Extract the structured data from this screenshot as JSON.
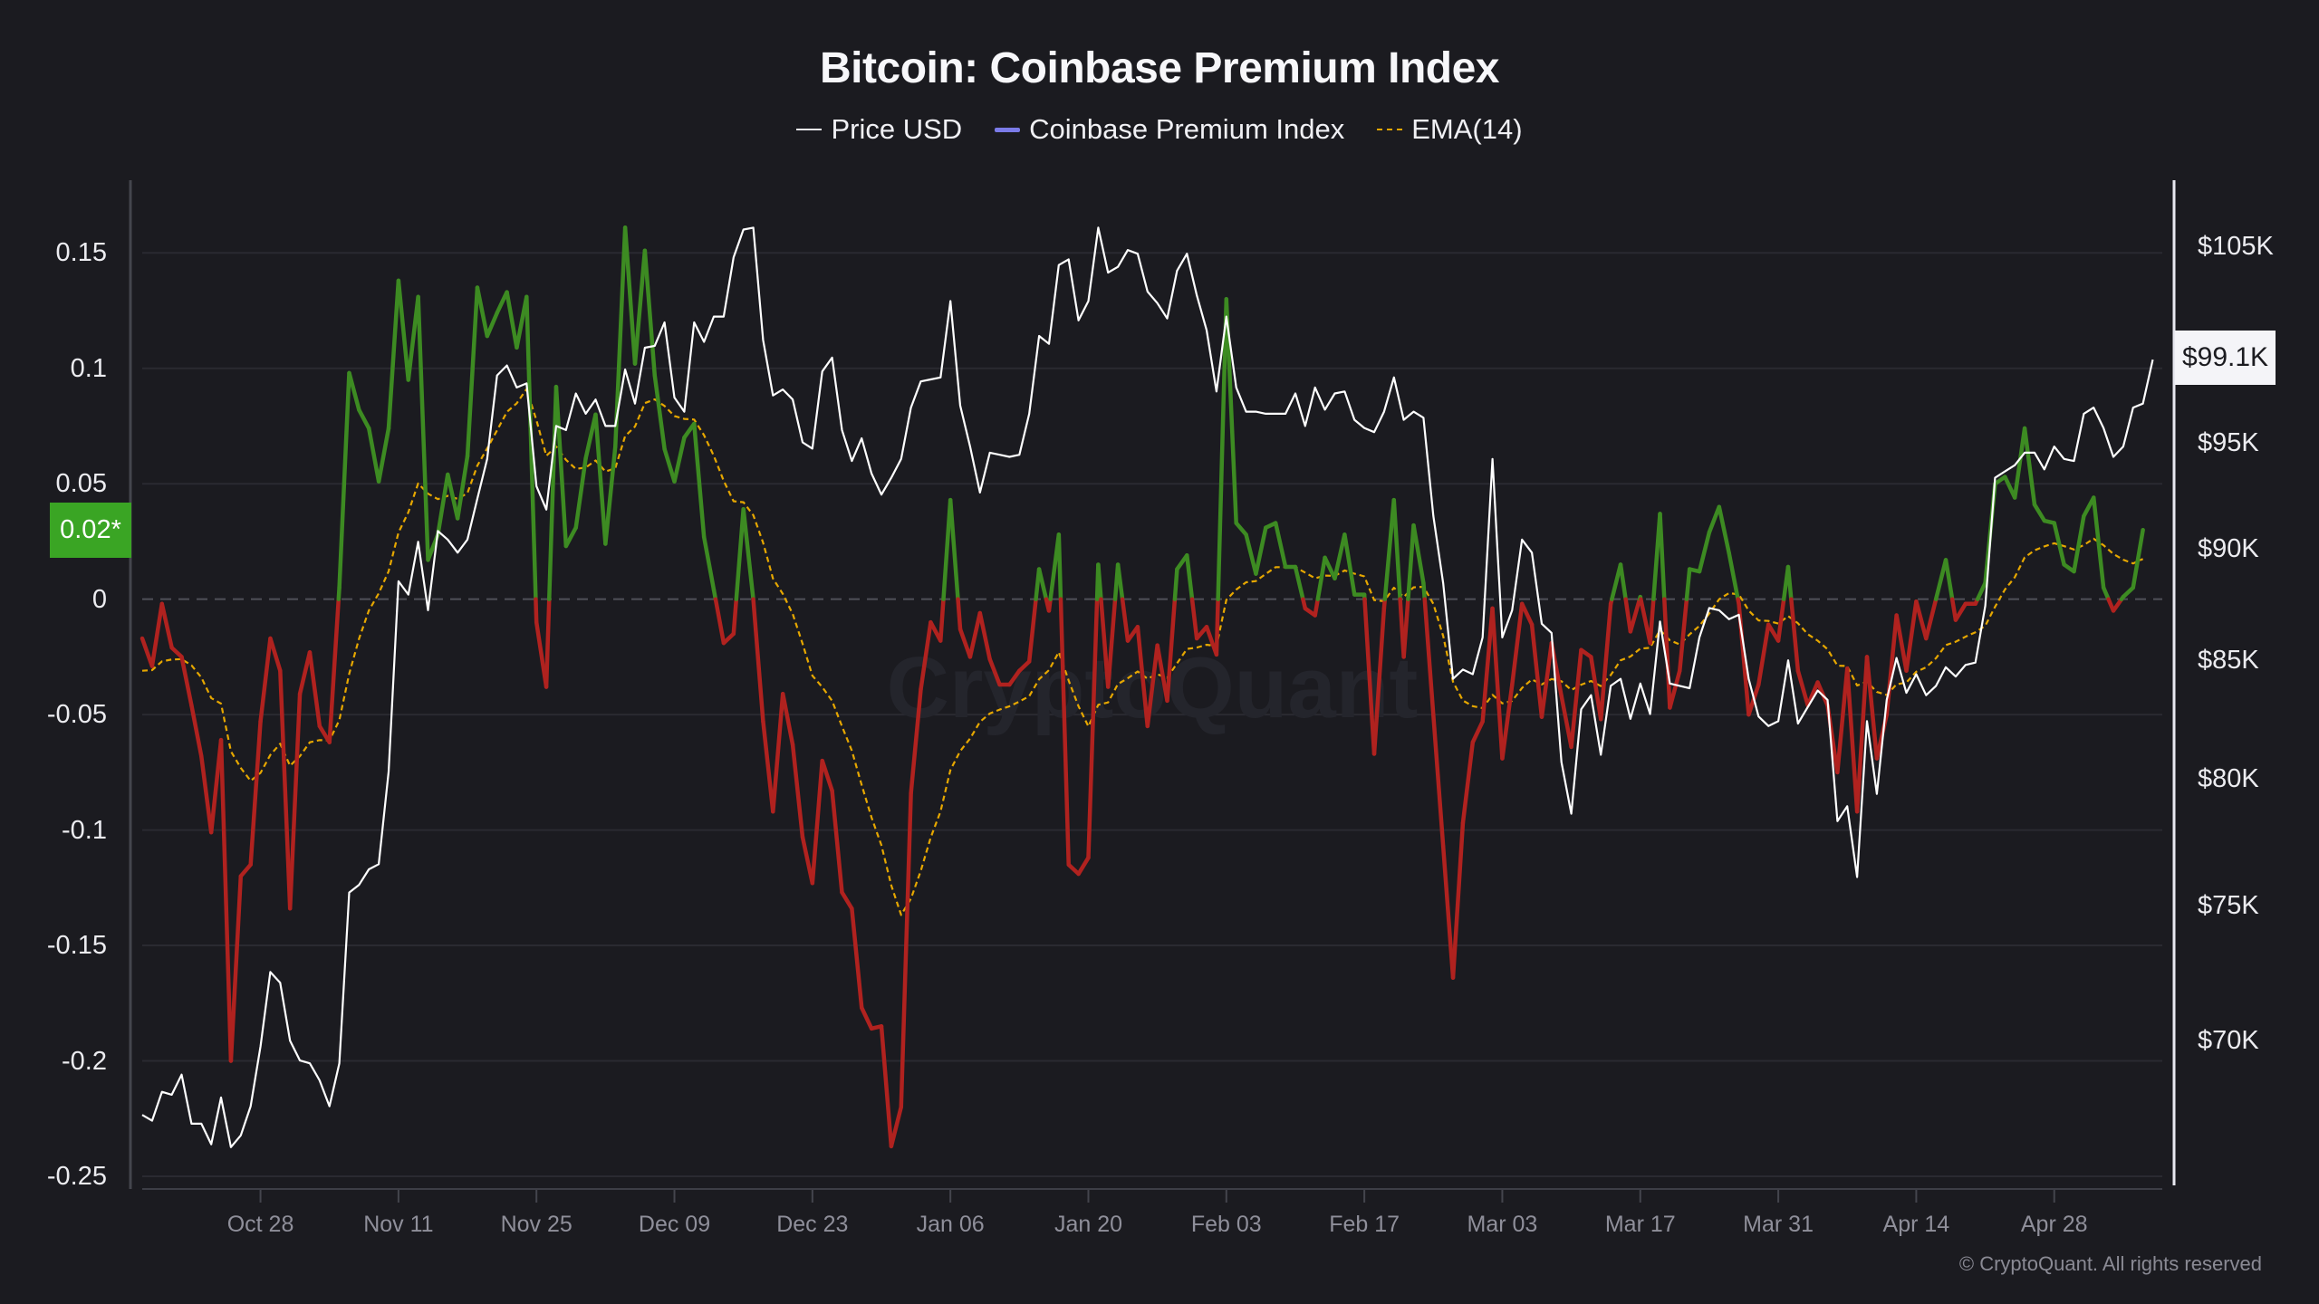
{
  "chart_data": {
    "type": "line",
    "title": "Bitcoin: Coinbase Premium Index",
    "legend": [
      {
        "name": "Price USD",
        "color": "#e8e8ee",
        "style": "solid"
      },
      {
        "name": "Coinbase Premium Index",
        "color": "#7b7be8",
        "style": "solid"
      },
      {
        "name": "EMA(14)",
        "color": "#e6a700",
        "style": "dashed"
      }
    ],
    "legend_position": "top-center",
    "colors": {
      "positive": "#3d8b22",
      "negative": "#b0221f",
      "price": "#ffffff",
      "ema": "#e6a700",
      "cpi_marker": "#3aa524",
      "background": "#1b1b20"
    },
    "x_ticks": [
      {
        "label": "Oct 28",
        "day": 12
      },
      {
        "label": "Nov 11",
        "day": 26
      },
      {
        "label": "Nov 25",
        "day": 40
      },
      {
        "label": "Dec 09",
        "day": 54
      },
      {
        "label": "Dec 23",
        "day": 68
      },
      {
        "label": "Jan 06",
        "day": 82
      },
      {
        "label": "Jan 20",
        "day": 96
      },
      {
        "label": "Feb 03",
        "day": 110
      },
      {
        "label": "Feb 17",
        "day": 124
      },
      {
        "label": "Mar 03",
        "day": 138
      },
      {
        "label": "Mar 17",
        "day": 152
      },
      {
        "label": "Mar 31",
        "day": 166
      },
      {
        "label": "Apr 14",
        "day": 180
      },
      {
        "label": "Apr 28",
        "day": 194
      }
    ],
    "left_axis": {
      "ylim": [
        -0.2555,
        0.1815
      ],
      "ticks": [
        {
          "label": "0.15",
          "value": 0.15
        },
        {
          "label": "0.1",
          "value": 0.1
        },
        {
          "label": "0.05",
          "value": 0.05
        },
        {
          "label": "0",
          "value": 0
        },
        {
          "label": "-0.05",
          "value": -0.05
        },
        {
          "label": "-0.1",
          "value": -0.1
        },
        {
          "label": "-0.15",
          "value": -0.15
        },
        {
          "label": "-0.2",
          "value": -0.2
        },
        {
          "label": "-0.25",
          "value": -0.25
        }
      ]
    },
    "right_axis": {
      "scale": "log",
      "units": "thousand USD",
      "ylim": [
        64.9,
        108.6
      ],
      "ticks": [
        {
          "label": "$105K",
          "value": 105
        },
        {
          "label": "$95K",
          "value": 95
        },
        {
          "label": "$90K",
          "value": 90
        },
        {
          "label": "$85K",
          "value": 85
        },
        {
          "label": "$80K",
          "value": 80
        },
        {
          "label": "$75K",
          "value": 75
        },
        {
          "label": "$70K",
          "value": 70
        }
      ]
    },
    "markers": {
      "cpi_last_label": "0.02*",
      "price_last_label": "$99.1K"
    },
    "grid": true,
    "ema": {
      "period": 14,
      "seed": -0.031
    },
    "series": [
      {
        "name": "Coinbase Premium Index",
        "axis": "left",
        "values": [
          -0.017,
          -0.029,
          -0.002,
          -0.021,
          -0.025,
          -0.046,
          -0.068,
          -0.101,
          -0.061,
          -0.2,
          -0.12,
          -0.115,
          -0.053,
          -0.017,
          -0.031,
          -0.134,
          -0.041,
          -0.023,
          -0.055,
          -0.062,
          0.005,
          0.098,
          0.082,
          0.074,
          0.051,
          0.074,
          0.138,
          0.095,
          0.131,
          0.017,
          0.028,
          0.054,
          0.035,
          0.062,
          0.135,
          0.114,
          0.124,
          0.133,
          0.109,
          0.131,
          -0.01,
          -0.038,
          0.092,
          0.023,
          0.031,
          0.061,
          0.08,
          0.024,
          0.066,
          0.161,
          0.102,
          0.151,
          0.097,
          0.065,
          0.051,
          0.07,
          0.076,
          0.027,
          0.004,
          -0.019,
          -0.015,
          0.039,
          0.0,
          -0.053,
          -0.092,
          -0.041,
          -0.063,
          -0.103,
          -0.123,
          -0.07,
          -0.083,
          -0.127,
          -0.134,
          -0.177,
          -0.186,
          -0.185,
          -0.237,
          -0.22,
          -0.084,
          -0.039,
          -0.01,
          -0.018,
          0.043,
          -0.013,
          -0.025,
          -0.006,
          -0.026,
          -0.037,
          -0.037,
          -0.031,
          -0.027,
          0.013,
          -0.005,
          0.028,
          -0.115,
          -0.119,
          -0.112,
          0.015,
          -0.038,
          0.015,
          -0.018,
          -0.012,
          -0.055,
          -0.02,
          -0.044,
          0.013,
          0.019,
          -0.017,
          -0.012,
          -0.024,
          0.13,
          0.033,
          0.028,
          0.011,
          0.031,
          0.033,
          0.014,
          0.014,
          -0.004,
          -0.007,
          0.018,
          0.009,
          0.028,
          0.002,
          0.002,
          -0.067,
          -0.004,
          0.043,
          -0.025,
          0.032,
          0.007,
          -0.05,
          -0.107,
          -0.164,
          -0.097,
          -0.062,
          -0.053,
          -0.004,
          -0.069,
          -0.037,
          -0.002,
          -0.011,
          -0.051,
          -0.019,
          -0.042,
          -0.064,
          -0.022,
          -0.025,
          -0.052,
          -0.002,
          0.015,
          -0.014,
          0.001,
          -0.019,
          0.037,
          -0.047,
          -0.031,
          0.013,
          0.012,
          0.029,
          0.04,
          0.02,
          -0.002,
          -0.05,
          -0.037,
          -0.011,
          -0.018,
          0.014,
          -0.031,
          -0.046,
          -0.036,
          -0.046,
          -0.075,
          -0.03,
          -0.092,
          -0.025,
          -0.069,
          -0.05,
          -0.007,
          -0.031,
          -0.001,
          -0.017,
          0.0,
          0.017,
          -0.009,
          -0.002,
          -0.002,
          0.007,
          0.05,
          0.053,
          0.044,
          0.074,
          0.041,
          0.034,
          0.033,
          0.015,
          0.012,
          0.036,
          0.044,
          0.005,
          -0.005,
          0.001,
          0.005,
          0.03
        ]
      },
      {
        "name": "Price USD",
        "axis": "right",
        "units": "thousand USD",
        "values": [
          67.4,
          67.2,
          68.2,
          68.1,
          68.8,
          67.1,
          67.1,
          66.4,
          68.0,
          66.3,
          66.7,
          67.7,
          69.8,
          72.5,
          72.1,
          70.0,
          69.3,
          69.2,
          68.6,
          67.7,
          69.2,
          75.5,
          75.8,
          76.4,
          76.6,
          80.3,
          88.5,
          87.9,
          90.3,
          87.2,
          90.8,
          90.4,
          89.8,
          90.4,
          92.3,
          94.2,
          98.3,
          98.8,
          97.7,
          97.9,
          92.9,
          91.8,
          95.8,
          95.6,
          97.4,
          96.4,
          97.1,
          95.8,
          95.8,
          98.6,
          96.9,
          99.7,
          99.8,
          101.0,
          97.2,
          96.5,
          101.0,
          100.0,
          101.3,
          101.3,
          104.4,
          105.9,
          106.0,
          100.1,
          97.3,
          97.6,
          97.1,
          95.0,
          94.7,
          98.5,
          99.2,
          95.6,
          94.1,
          95.2,
          93.5,
          92.5,
          93.3,
          94.2,
          96.7,
          98.0,
          98.1,
          98.2,
          102.1,
          96.8,
          94.8,
          92.6,
          94.5,
          94.4,
          94.3,
          94.4,
          96.4,
          100.3,
          99.9,
          104.0,
          104.3,
          101.1,
          102.1,
          106.0,
          103.6,
          103.9,
          104.8,
          104.6,
          102.6,
          102.0,
          101.2,
          103.7,
          104.6,
          102.4,
          100.6,
          97.5,
          101.3,
          97.7,
          96.5,
          96.5,
          96.4,
          96.4,
          96.4,
          97.4,
          95.8,
          97.7,
          96.6,
          97.4,
          97.5,
          96.1,
          95.7,
          95.5,
          96.5,
          98.2,
          96.1,
          96.5,
          96.2,
          91.5,
          88.4,
          84.2,
          84.6,
          84.4,
          86.0,
          94.2,
          86.0,
          87.2,
          90.4,
          89.8,
          86.6,
          86.2,
          80.7,
          78.6,
          82.9,
          83.5,
          81.0,
          83.9,
          84.2,
          82.5,
          84.0,
          82.7,
          86.7,
          84.0,
          83.9,
          83.8,
          86.0,
          87.3,
          87.2,
          86.8,
          87.0,
          84.2,
          82.6,
          82.2,
          82.4,
          85.0,
          82.3,
          83.0,
          83.7,
          83.3,
          78.3,
          78.9,
          76.1,
          82.4,
          79.4,
          83.3,
          85.1,
          83.6,
          84.4,
          83.5,
          83.9,
          84.7,
          84.3,
          84.8,
          84.9,
          87.4,
          93.3,
          93.6,
          93.9,
          94.5,
          94.5,
          93.7,
          94.8,
          94.2,
          94.1,
          96.4,
          96.7,
          95.7,
          94.3,
          94.8,
          96.7,
          96.9,
          99.1
        ]
      }
    ]
  },
  "legend_labels": {
    "price": "Price USD",
    "cpi": "Coinbase Premium Index",
    "ema": "EMA(14)"
  },
  "watermark": "CryptoQuant",
  "copyright": "© CryptoQuant. All rights reserved"
}
